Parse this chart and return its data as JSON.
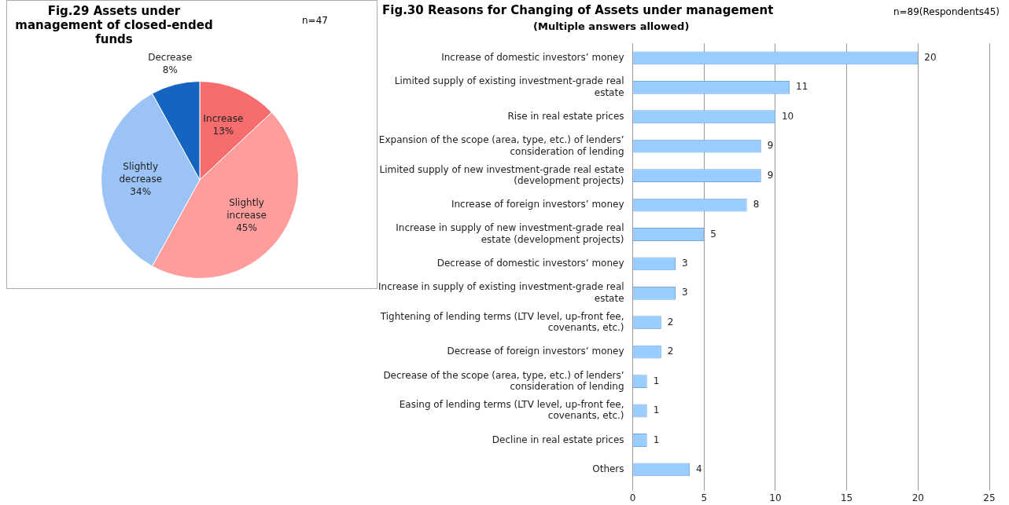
{
  "chart_data": [
    {
      "type": "pie",
      "title": "Fig.29 Assets under management of closed-ended funds",
      "annotations": [
        "n=47"
      ],
      "categories": [
        "Increase",
        "Slightly increase",
        "Slightly decrease",
        "Decrease"
      ],
      "values": [
        13,
        45,
        34,
        8
      ],
      "value_labels": [
        "13%",
        "45%",
        "34%",
        "8%"
      ],
      "colors": [
        "#f76c6c",
        "#ff9d9d",
        "#9cc3f5",
        "#1565c0"
      ],
      "legend": false
    },
    {
      "type": "bar",
      "orientation": "horizontal",
      "title": "Fig.30 Reasons for Changing of Assets under management",
      "subtitle": "(Multiple answers allowed)",
      "annotations": [
        "n=89(Respondents45)"
      ],
      "categories": [
        "Increase of domestic investors’ money",
        "Limited supply of existing investment-grade real estate",
        "Rise in real estate prices",
        "Expansion of the scope (area, type, etc.) of lenders’ consideration of lending",
        "Limited supply of new investment-grade real estate (development projects)",
        "Increase of foreign investors’ money",
        "Increase in supply of new investment-grade real estate (development projects)",
        "Decrease of domestic investors’ money",
        "Increase in supply of existing investment-grade real estate",
        "Tightening of lending terms (LTV level, up-front fee, covenants, etc.)",
        "Decrease of foreign investors’ money",
        "Decrease of the scope (area, type, etc.) of lenders’ consideration of lending",
        "Easing of lending terms (LTV level, up-front fee, covenants, etc.)",
        "Decline in real estate prices",
        "Others"
      ],
      "values": [
        20,
        11,
        10,
        9,
        9,
        8,
        5,
        3,
        3,
        2,
        2,
        1,
        1,
        1,
        4
      ],
      "color": "#99ccff",
      "xlim": [
        0,
        25
      ],
      "xticks": [
        0,
        5,
        10,
        15,
        20,
        25
      ],
      "grid": "x",
      "data_labels": true,
      "legend": false
    }
  ]
}
